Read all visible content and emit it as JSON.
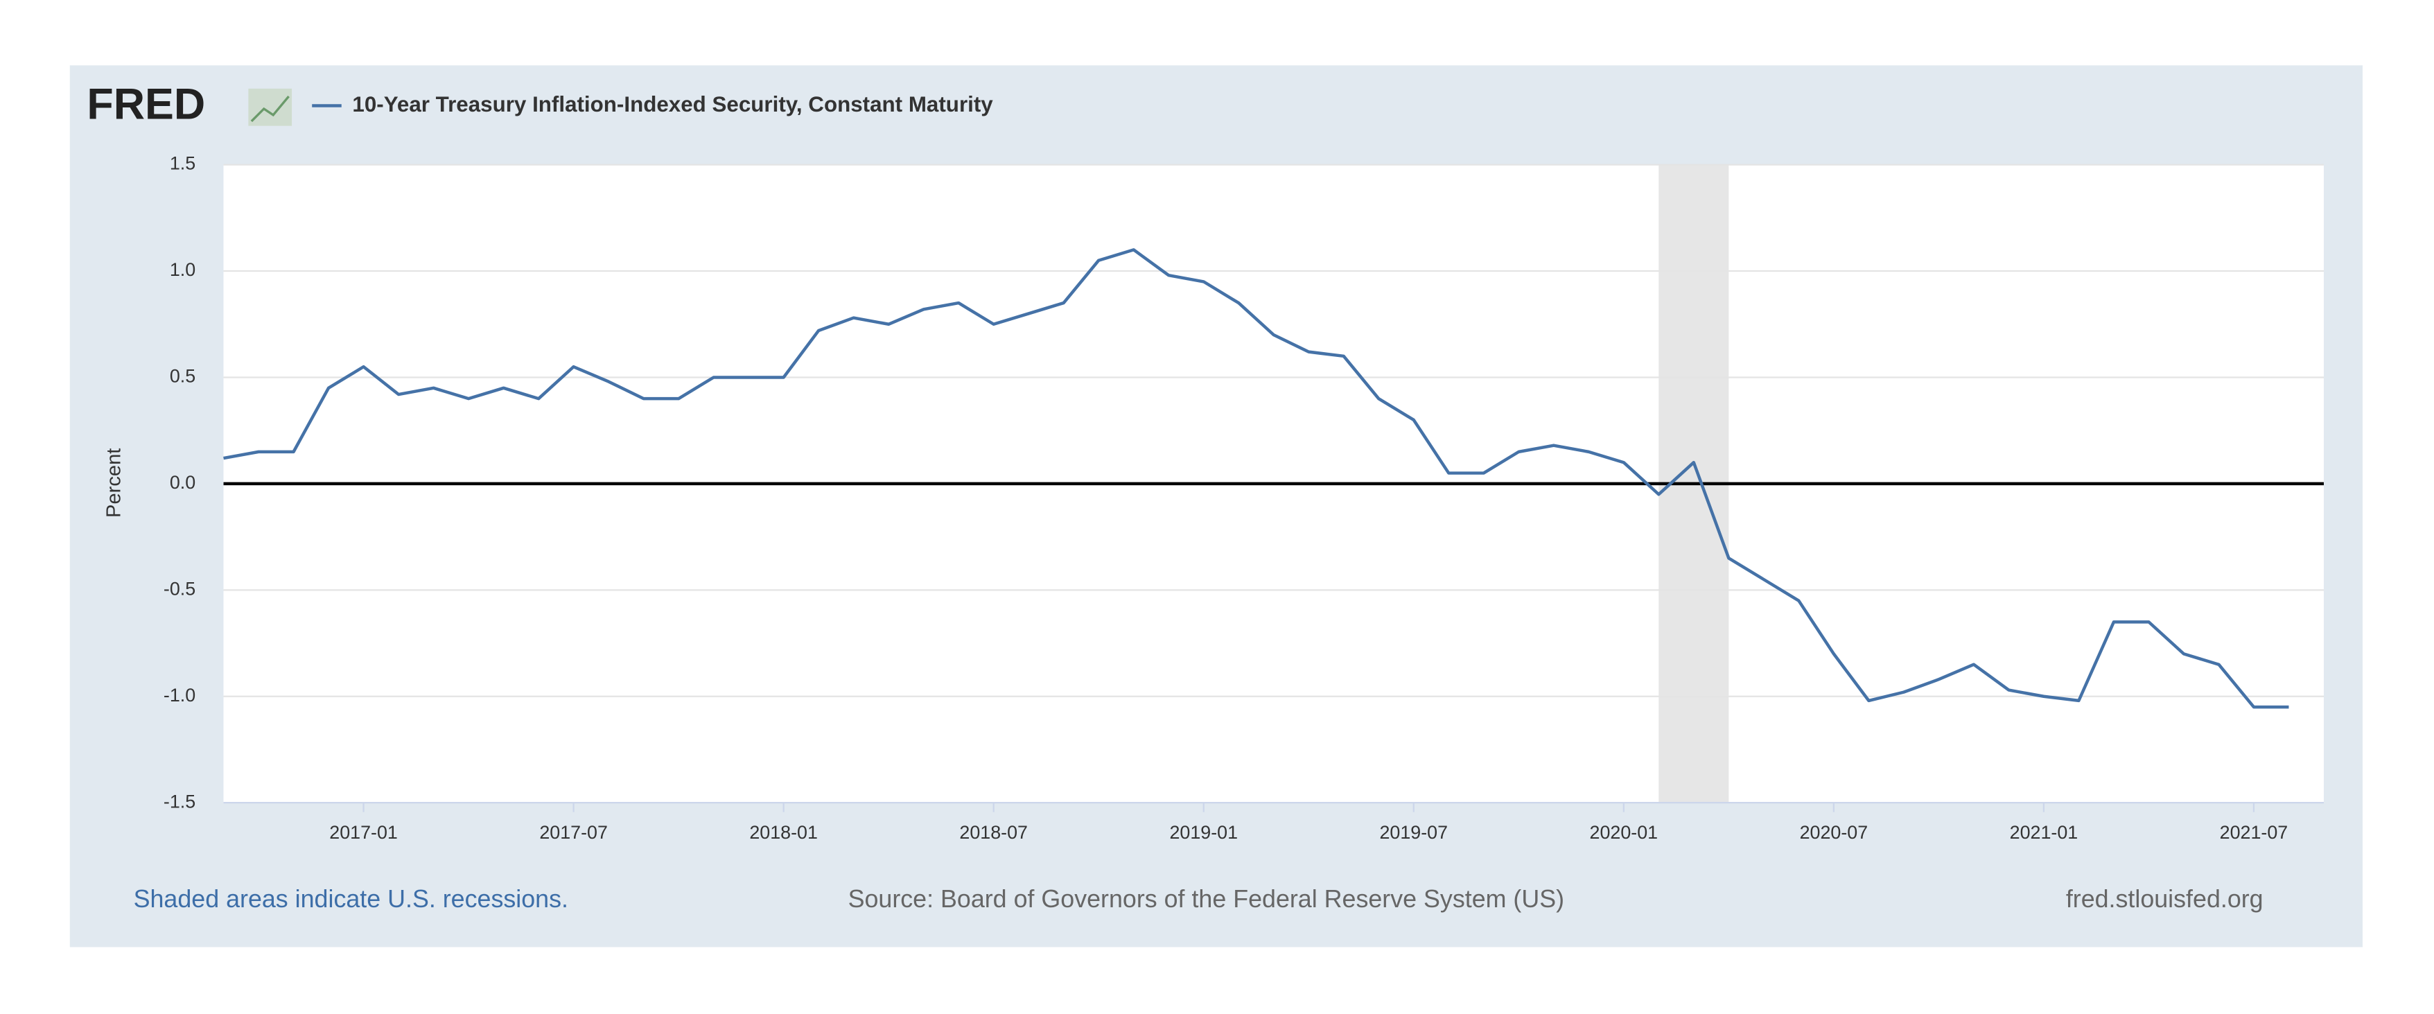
{
  "chart_data": {
    "type": "line",
    "logo": "FRED",
    "title": "10-Year Treasury Inflation-Indexed Security, Constant Maturity",
    "y_label": "Percent",
    "recession_note": "Shaded areas indicate U.S. recessions.",
    "source": "Source: Board of Governors of the Federal Reserve System (US)",
    "site": "fred.stlouisfed.org",
    "x": [
      "2016-09",
      "2016-10",
      "2016-11",
      "2016-12",
      "2017-01",
      "2017-02",
      "2017-03",
      "2017-04",
      "2017-05",
      "2017-06",
      "2017-07",
      "2017-08",
      "2017-09",
      "2017-10",
      "2017-11",
      "2017-12",
      "2018-01",
      "2018-02",
      "2018-03",
      "2018-04",
      "2018-05",
      "2018-06",
      "2018-07",
      "2018-08",
      "2018-09",
      "2018-10",
      "2018-11",
      "2018-12",
      "2019-01",
      "2019-02",
      "2019-03",
      "2019-04",
      "2019-05",
      "2019-06",
      "2019-07",
      "2019-08",
      "2019-09",
      "2019-10",
      "2019-11",
      "2019-12",
      "2020-01",
      "2020-02",
      "2020-03",
      "2020-04",
      "2020-05",
      "2020-06",
      "2020-07",
      "2020-08",
      "2020-09",
      "2020-10",
      "2020-11",
      "2020-12",
      "2021-01",
      "2021-02",
      "2021-03",
      "2021-04",
      "2021-05",
      "2021-06",
      "2021-07",
      "2021-08"
    ],
    "series": [
      {
        "name": "10-Year Treasury Inflation-Indexed Security, Constant Maturity",
        "color": "#4572a7",
        "values": [
          0.12,
          0.15,
          0.15,
          0.45,
          0.55,
          0.42,
          0.45,
          0.4,
          0.45,
          0.4,
          0.55,
          0.48,
          0.4,
          0.4,
          0.5,
          0.5,
          0.5,
          0.72,
          0.78,
          0.75,
          0.82,
          0.85,
          0.75,
          0.8,
          0.85,
          1.05,
          1.1,
          0.98,
          0.95,
          0.85,
          0.7,
          0.62,
          0.6,
          0.4,
          0.3,
          0.05,
          0.05,
          0.15,
          0.18,
          0.15,
          0.1,
          -0.05,
          0.1,
          -0.35,
          -0.45,
          -0.55,
          -0.8,
          -1.02,
          -0.98,
          -0.92,
          -0.85,
          -0.97,
          -1.0,
          -1.02,
          -0.65,
          -0.65,
          -0.8,
          -0.85,
          -1.05,
          -1.05
        ]
      }
    ],
    "xlim": [
      "2016-09",
      "2021-09"
    ],
    "xticks": [
      "2017-01",
      "2017-07",
      "2018-01",
      "2018-07",
      "2019-01",
      "2019-07",
      "2020-01",
      "2020-07",
      "2021-01",
      "2021-07"
    ],
    "ylim": [
      -1.5,
      1.5
    ],
    "yticks": [
      -1.5,
      {
        "value": -1,
        "label": "-1.0"
      },
      -0.5,
      {
        "value": 0,
        "label": "0.0"
      },
      0.5,
      {
        "value": 1,
        "label": "1.0"
      },
      1.5
    ],
    "recessions": [
      [
        "2020-02",
        "2020-04"
      ]
    ],
    "grid": true
  }
}
